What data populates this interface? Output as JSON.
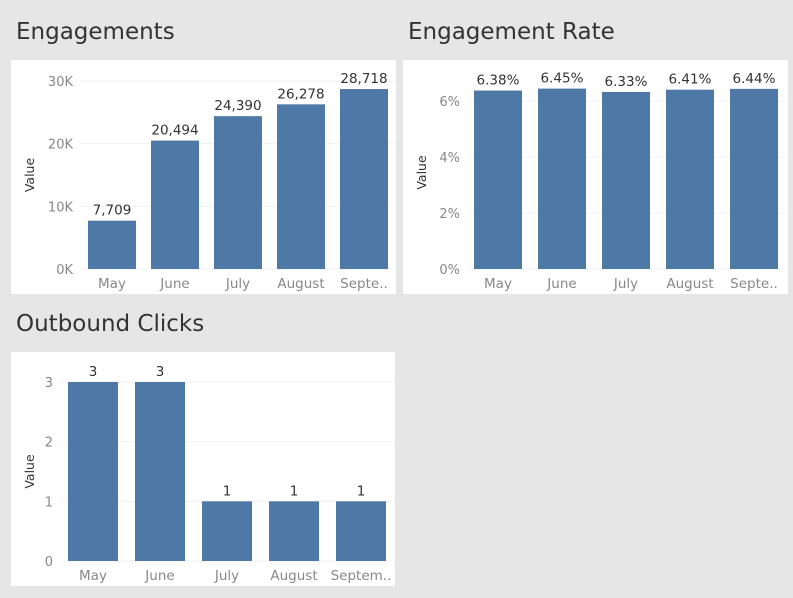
{
  "chart_data": [
    {
      "type": "bar",
      "title": "Engagements",
      "ylabel": "Value",
      "categories": [
        "May",
        "June",
        "July",
        "August",
        "Septe.."
      ],
      "values": [
        7709,
        20494,
        24390,
        26278,
        28718
      ],
      "data_labels": [
        "7,709",
        "20,494",
        "24,390",
        "26,278",
        "28,718"
      ],
      "y_ticks": [
        0,
        10000,
        20000,
        30000
      ],
      "y_tick_labels": [
        "0K",
        "10K",
        "20K",
        "30K"
      ],
      "ylim": [
        0,
        30000
      ],
      "bar_color": "#4e79a7",
      "grid": true
    },
    {
      "type": "bar",
      "title": "Engagement Rate",
      "ylabel": "Value",
      "categories": [
        "May",
        "June",
        "July",
        "August",
        "Septe.."
      ],
      "values": [
        6.38,
        6.45,
        6.33,
        6.41,
        6.44
      ],
      "data_labels": [
        "6.38%",
        "6.45%",
        "6.33%",
        "6.41%",
        "6.44%"
      ],
      "y_ticks": [
        0,
        2,
        4,
        6
      ],
      "y_tick_labels": [
        "0%",
        "2%",
        "4%",
        "6%"
      ],
      "ylim": [
        0,
        6.9
      ],
      "bar_color": "#4e79a7",
      "grid": true
    },
    {
      "type": "bar",
      "title": "Outbound Clicks",
      "ylabel": "Value",
      "categories": [
        "May",
        "June",
        "July",
        "August",
        "Septem.."
      ],
      "values": [
        3,
        3,
        1,
        1,
        1
      ],
      "data_labels": [
        "3",
        "3",
        "1",
        "1",
        "1"
      ],
      "y_ticks": [
        0,
        1,
        2,
        3
      ],
      "y_tick_labels": [
        "0",
        "1",
        "2",
        "3"
      ],
      "ylim": [
        0,
        3
      ],
      "bar_color": "#4e79a7",
      "grid": true
    }
  ]
}
